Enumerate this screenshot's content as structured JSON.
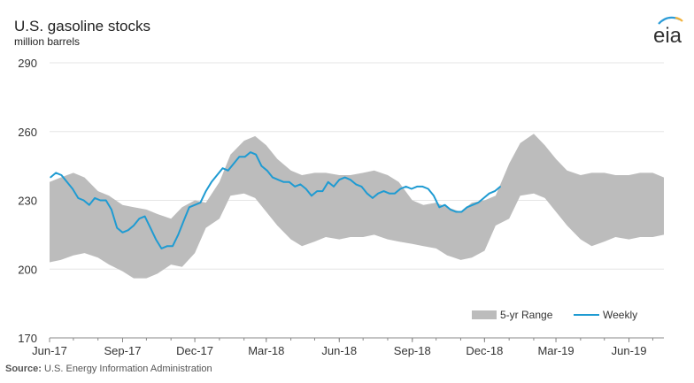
{
  "header": {
    "title": "U.S. gasoline stocks",
    "subtitle": "million barrels",
    "logo_text": "eia"
  },
  "source": {
    "label": "Source:",
    "text": "U.S. Energy Information Administration"
  },
  "colors": {
    "range_fill": "#bcbcbc",
    "weekly_line": "#1f9bd2",
    "grid": "#e6e6e6",
    "axis": "#888888",
    "logo_arc": "#2d9cd7",
    "logo_accent": "#f2b33d"
  },
  "chart_data": {
    "type": "area",
    "title": "U.S. gasoline stocks",
    "ylabel": "million barrels",
    "ylim": [
      170,
      290
    ],
    "yticks": [
      170,
      200,
      230,
      260,
      290
    ],
    "grid": "horizontal",
    "legend_position": "bottom-right",
    "xticks": [
      "Jun-17",
      "Sep-17",
      "Dec-17",
      "Mar-18",
      "Jun-18",
      "Sep-18",
      "Dec-18",
      "Mar-19",
      "Jun-19"
    ],
    "x_start": "2017-06-01",
    "x_end": "2019-07-15",
    "series": [
      {
        "name": "5-yr Range",
        "kind": "band",
        "x": [
          "2017-06-01",
          "2017-06-15",
          "2017-07-01",
          "2017-07-15",
          "2017-08-01",
          "2017-08-15",
          "2017-09-01",
          "2017-09-15",
          "2017-10-01",
          "2017-10-15",
          "2017-11-01",
          "2017-11-15",
          "2017-12-01",
          "2017-12-15",
          "2018-01-01",
          "2018-01-15",
          "2018-02-01",
          "2018-02-15",
          "2018-03-01",
          "2018-03-15",
          "2018-04-01",
          "2018-04-15",
          "2018-05-01",
          "2018-05-15",
          "2018-06-01",
          "2018-06-15",
          "2018-07-01",
          "2018-07-15",
          "2018-08-01",
          "2018-08-15",
          "2018-09-01",
          "2018-09-15",
          "2018-10-01",
          "2018-10-15",
          "2018-11-01",
          "2018-11-15",
          "2018-12-01",
          "2018-12-15",
          "2019-01-01",
          "2019-01-15",
          "2019-02-01",
          "2019-02-15",
          "2019-03-01",
          "2019-03-15",
          "2019-04-01",
          "2019-04-15",
          "2019-05-01",
          "2019-05-15",
          "2019-06-01",
          "2019-06-15",
          "2019-07-01",
          "2019-07-15"
        ],
        "low": [
          203,
          204,
          206,
          207,
          205,
          202,
          199,
          196,
          196,
          198,
          202,
          201,
          207,
          218,
          222,
          232,
          233,
          231,
          225,
          219,
          213,
          210,
          212,
          214,
          213,
          214,
          214,
          215,
          213,
          212,
          211,
          210,
          209,
          206,
          204,
          205,
          208,
          219,
          222,
          232,
          233,
          231,
          225,
          219,
          213,
          210,
          212,
          214,
          213,
          214,
          214,
          215
        ],
        "high": [
          238,
          240,
          242,
          240,
          234,
          232,
          228,
          227,
          226,
          224,
          222,
          227,
          230,
          229,
          238,
          250,
          256,
          258,
          254,
          248,
          243,
          241,
          242,
          242,
          241,
          241,
          242,
          243,
          241,
          238,
          230,
          228,
          229,
          227,
          225,
          229,
          230,
          232,
          246,
          255,
          259,
          254,
          248,
          243,
          241,
          242,
          242,
          241,
          241,
          242,
          242,
          240
        ]
      },
      {
        "name": "Weekly",
        "kind": "line",
        "x": [
          "2017-06-02",
          "2017-06-09",
          "2017-06-16",
          "2017-06-23",
          "2017-06-30",
          "2017-07-07",
          "2017-07-14",
          "2017-07-21",
          "2017-07-28",
          "2017-08-04",
          "2017-08-11",
          "2017-08-18",
          "2017-08-25",
          "2017-09-01",
          "2017-09-08",
          "2017-09-15",
          "2017-09-22",
          "2017-09-29",
          "2017-10-06",
          "2017-10-13",
          "2017-10-20",
          "2017-10-27",
          "2017-11-03",
          "2017-11-10",
          "2017-11-17",
          "2017-11-24",
          "2017-12-01",
          "2017-12-08",
          "2017-12-15",
          "2017-12-22",
          "2017-12-29",
          "2018-01-05",
          "2018-01-12",
          "2018-01-19",
          "2018-01-26",
          "2018-02-02",
          "2018-02-09",
          "2018-02-16",
          "2018-02-23",
          "2018-03-02",
          "2018-03-09",
          "2018-03-16",
          "2018-03-23",
          "2018-03-30",
          "2018-04-06",
          "2018-04-13",
          "2018-04-20",
          "2018-04-27",
          "2018-05-04",
          "2018-05-11",
          "2018-05-18",
          "2018-05-25",
          "2018-06-01",
          "2018-06-08",
          "2018-06-15",
          "2018-06-22",
          "2018-06-29",
          "2018-07-06",
          "2018-07-13",
          "2018-07-20",
          "2018-07-27",
          "2018-08-03",
          "2018-08-10",
          "2018-08-17",
          "2018-08-24",
          "2018-08-31",
          "2018-09-07",
          "2018-09-14",
          "2018-09-21",
          "2018-09-28",
          "2018-10-05",
          "2018-10-12",
          "2018-10-19",
          "2018-10-26",
          "2018-11-02",
          "2018-11-09",
          "2018-11-16",
          "2018-11-23",
          "2018-11-30",
          "2018-12-07",
          "2018-12-14",
          "2018-12-21"
        ],
        "values": [
          240,
          242,
          241,
          238,
          235,
          231,
          230,
          228,
          231,
          230,
          230,
          226,
          218,
          216,
          217,
          219,
          222,
          223,
          218,
          213,
          209,
          210,
          210,
          215,
          221,
          227,
          228,
          229,
          234,
          238,
          241,
          244,
          243,
          246,
          249,
          249,
          251,
          250,
          245,
          243,
          240,
          239,
          238,
          238,
          236,
          237,
          235,
          232,
          234,
          234,
          238,
          236,
          239,
          240,
          239,
          237,
          236,
          233,
          231,
          233,
          234,
          233,
          233,
          235,
          236,
          235,
          236,
          236,
          235,
          232,
          227,
          228,
          226,
          225,
          225,
          227,
          228,
          229,
          231,
          233,
          234,
          236
        ]
      }
    ]
  },
  "legend": {
    "range_label": "5-yr Range",
    "weekly_label": "Weekly"
  }
}
